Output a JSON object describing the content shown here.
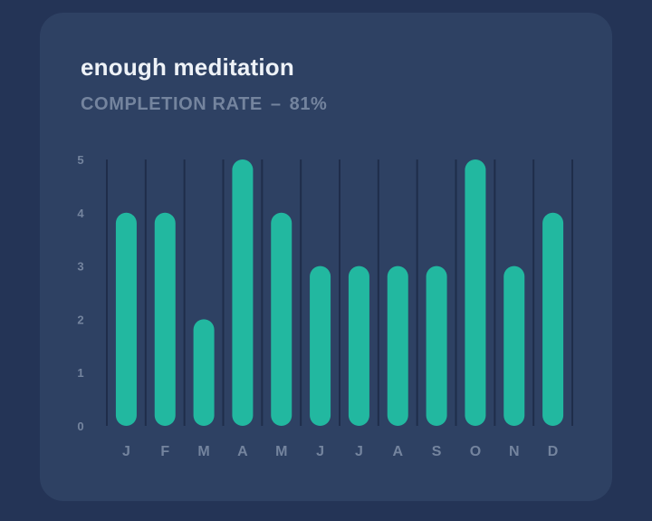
{
  "card": {
    "title": "enough meditation",
    "subtitle_label": "COMPLETION RATE",
    "subtitle_separator": "–",
    "subtitle_value": "81%"
  },
  "colors": {
    "background": "#243456",
    "card": "#2e4163",
    "bar": "#22b8a0",
    "gridline": "#1f2d4a",
    "muted_text": "#74849e",
    "title_text": "#eef2f7"
  },
  "chart_data": {
    "type": "bar",
    "categories": [
      "J",
      "F",
      "M",
      "A",
      "M",
      "J",
      "J",
      "A",
      "S",
      "O",
      "N",
      "D"
    ],
    "values": [
      4,
      4,
      2,
      5,
      4,
      3,
      3,
      3,
      3,
      5,
      3,
      4
    ],
    "yticks": [
      0,
      1,
      2,
      3,
      4,
      5
    ],
    "ylim": [
      0,
      5
    ],
    "grid": "vertical",
    "title": "enough meditation",
    "xlabel": "",
    "ylabel": ""
  }
}
